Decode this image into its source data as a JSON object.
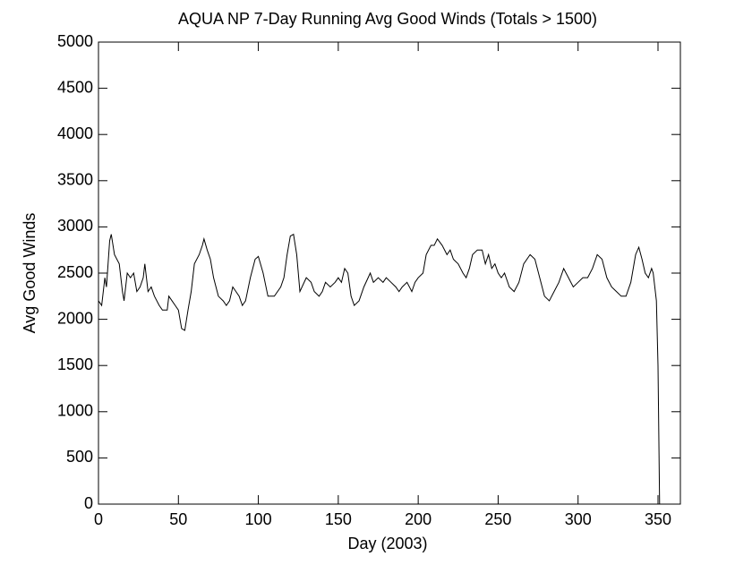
{
  "chart_data": {
    "type": "line",
    "title": "AQUA NP 7-Day Running Avg Good Winds (Totals > 1500)",
    "x_label": "Day (2003)",
    "y_label": "Avg Good Winds",
    "xlim": [
      0,
      364
    ],
    "ylim": [
      0,
      5000
    ],
    "xticks": [
      0,
      50,
      100,
      150,
      200,
      250,
      300,
      350
    ],
    "yticks": [
      0,
      500,
      1000,
      1500,
      2000,
      2500,
      3000,
      3500,
      4000,
      4500,
      5000
    ],
    "grid": false,
    "series": [
      {
        "color": "#000000",
        "x": [
          0,
          2,
          4,
          5,
          7,
          8,
          10,
          13,
          15,
          16,
          18,
          20,
          22,
          24,
          26,
          28,
          29,
          31,
          33,
          35,
          38,
          40,
          43,
          44,
          46,
          48,
          50,
          52,
          54,
          56,
          58,
          60,
          63,
          65,
          66,
          68,
          70,
          72,
          75,
          78,
          80,
          82,
          84,
          86,
          88,
          90,
          92,
          95,
          98,
          100,
          103,
          106,
          110,
          114,
          116,
          118,
          120,
          122,
          124,
          126,
          130,
          133,
          135,
          138,
          140,
          142,
          145,
          148,
          150,
          152,
          154,
          156,
          158,
          160,
          163,
          166,
          170,
          172,
          175,
          178,
          180,
          183,
          186,
          188,
          190,
          193,
          196,
          198,
          200,
          203,
          205,
          208,
          210,
          212,
          215,
          218,
          220,
          222,
          225,
          228,
          230,
          232,
          234,
          237,
          240,
          242,
          244,
          246,
          248,
          250,
          252,
          254,
          257,
          260,
          263,
          266,
          270,
          273,
          276,
          279,
          282,
          285,
          288,
          291,
          294,
          297,
          300,
          303,
          306,
          309,
          312,
          315,
          318,
          321,
          324,
          327,
          330,
          333,
          336,
          338,
          340,
          342,
          344,
          346,
          347,
          349,
          350,
          351
        ],
        "values": [
          2200,
          2150,
          2450,
          2350,
          2850,
          2920,
          2700,
          2600,
          2300,
          2200,
          2500,
          2450,
          2500,
          2300,
          2350,
          2450,
          2600,
          2300,
          2350,
          2250,
          2150,
          2100,
          2100,
          2250,
          2200,
          2150,
          2100,
          1900,
          1880,
          2100,
          2300,
          2600,
          2700,
          2800,
          2870,
          2750,
          2650,
          2450,
          2250,
          2200,
          2150,
          2200,
          2350,
          2300,
          2250,
          2150,
          2200,
          2450,
          2650,
          2680,
          2500,
          2250,
          2250,
          2350,
          2450,
          2700,
          2900,
          2920,
          2700,
          2300,
          2450,
          2400,
          2300,
          2250,
          2300,
          2400,
          2350,
          2400,
          2450,
          2400,
          2550,
          2500,
          2250,
          2150,
          2200,
          2350,
          2500,
          2400,
          2450,
          2400,
          2450,
          2400,
          2350,
          2300,
          2350,
          2400,
          2300,
          2400,
          2450,
          2500,
          2700,
          2800,
          2800,
          2870,
          2800,
          2700,
          2750,
          2650,
          2600,
          2500,
          2450,
          2550,
          2700,
          2750,
          2750,
          2600,
          2700,
          2550,
          2600,
          2500,
          2450,
          2500,
          2350,
          2300,
          2400,
          2600,
          2700,
          2650,
          2450,
          2250,
          2200,
          2300,
          2400,
          2550,
          2450,
          2350,
          2400,
          2450,
          2450,
          2550,
          2700,
          2650,
          2450,
          2350,
          2300,
          2250,
          2250,
          2400,
          2700,
          2780,
          2650,
          2500,
          2450,
          2550,
          2500,
          2200,
          1500,
          0
        ]
      }
    ]
  }
}
